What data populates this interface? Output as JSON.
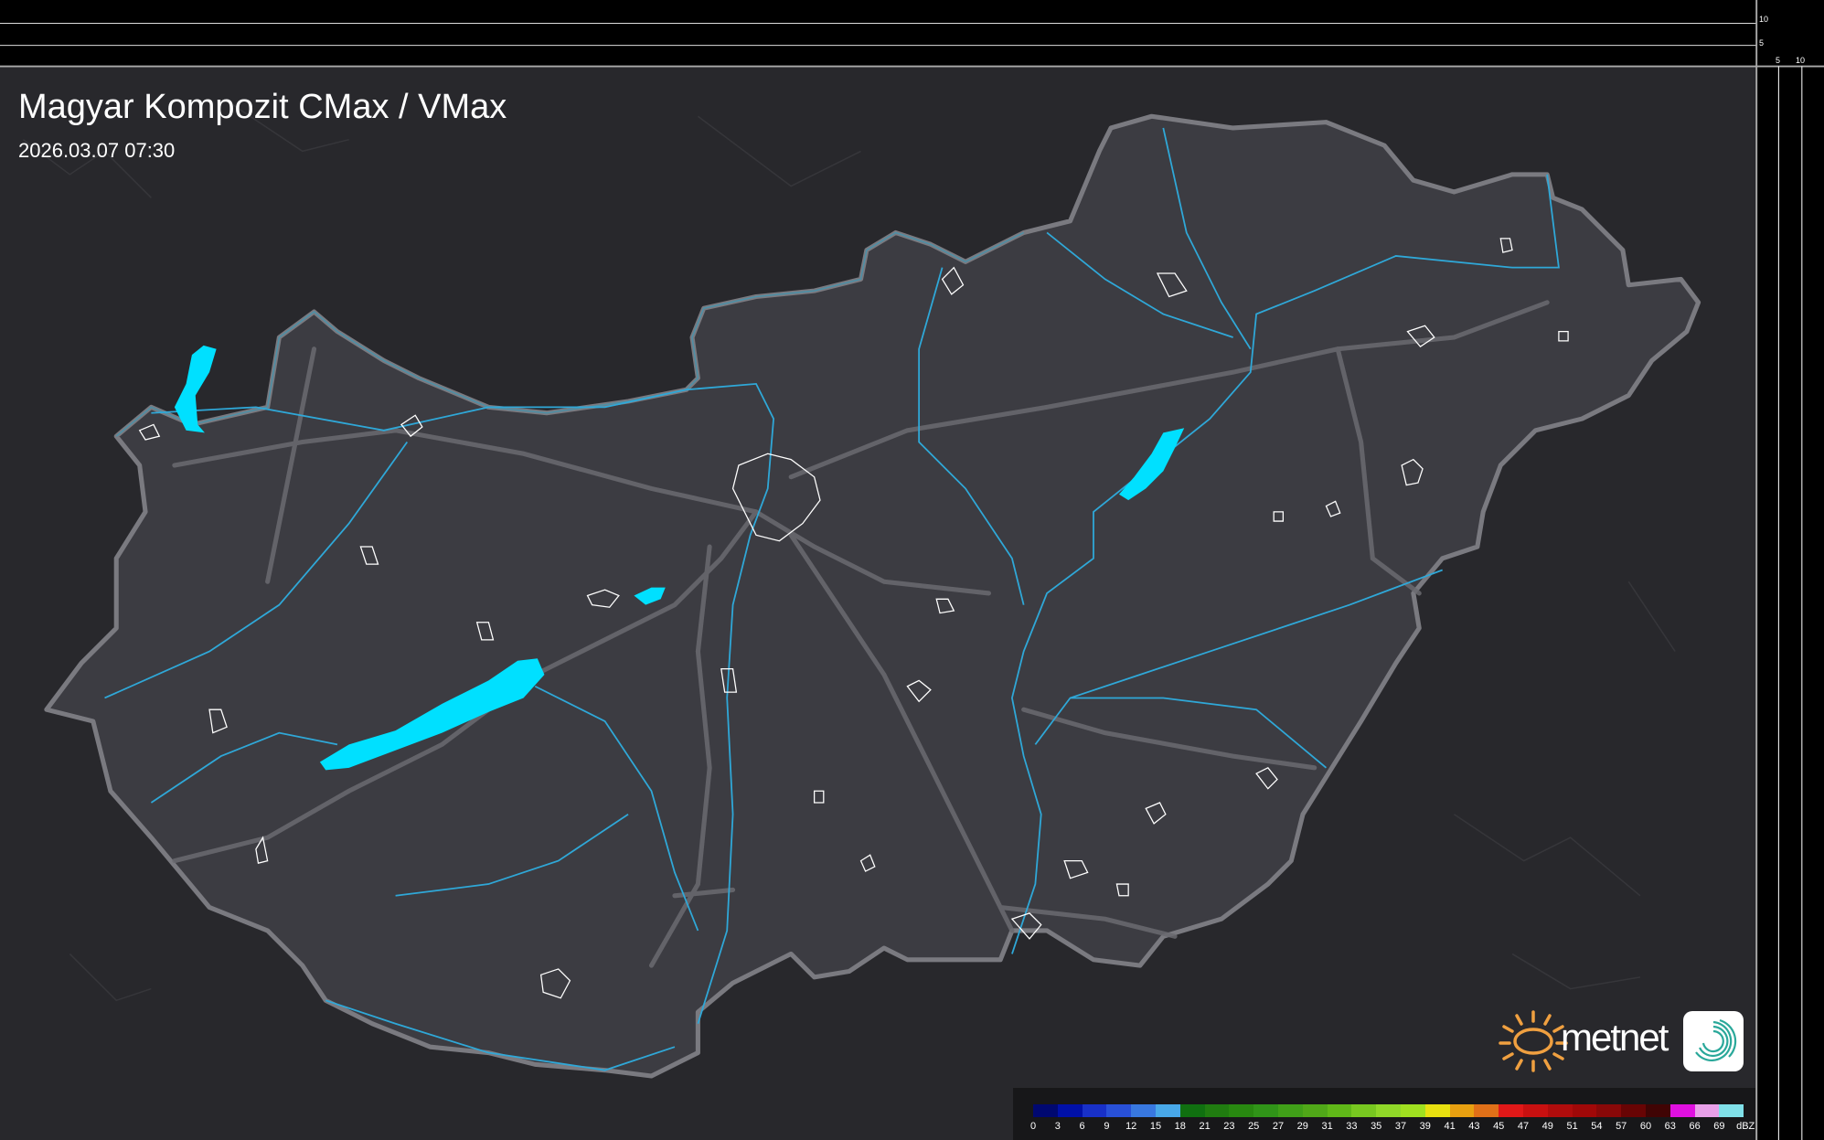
{
  "header": {
    "title": "Magyar Kompozit CMax / VMax",
    "timestamp": "2026.03.07 07:30"
  },
  "side_scale": {
    "vertical_ticks": [
      "10",
      "5"
    ],
    "horizontal_ticks": [
      "5",
      "10"
    ]
  },
  "legend": {
    "unit": "dBZ",
    "labels": [
      "0",
      "3",
      "6",
      "9",
      "12",
      "15",
      "18",
      "21",
      "23",
      "25",
      "27",
      "29",
      "31",
      "33",
      "35",
      "37",
      "39",
      "41",
      "43",
      "45",
      "47",
      "49",
      "51",
      "54",
      "57",
      "60",
      "63",
      "66",
      "69"
    ],
    "colors": [
      "#000870",
      "#0010a8",
      "#1830c8",
      "#2850d8",
      "#3878e0",
      "#48a8e8",
      "#107010",
      "#207c10",
      "#288810",
      "#309418",
      "#40a018",
      "#50a818",
      "#60b818",
      "#78c820",
      "#90d828",
      "#a0e020",
      "#e8e010",
      "#e8a010",
      "#e07018",
      "#e01818",
      "#c81010",
      "#b00c0c",
      "#a00808",
      "#880808",
      "#680404",
      "#400404",
      "#e010e0",
      "#e8a0e8",
      "#80e0e8"
    ]
  },
  "branding": {
    "logo_text": "metnet",
    "sun_color": "#f0a040",
    "icon_color": "#2aa89a"
  },
  "colors": {
    "background": "#28282c",
    "country_fill": "#3c3c42",
    "border": "#7a7a80",
    "rivers": "#2fa8d8",
    "lakes": "#00e0ff"
  }
}
